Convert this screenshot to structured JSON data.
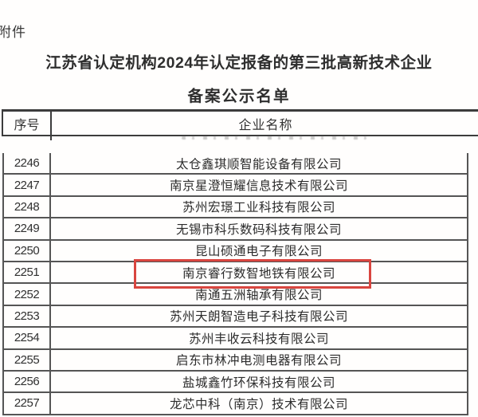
{
  "page": {
    "attachment_label": "附件",
    "title_line1": "江苏省认定机构2024年认定报备的第三批高新技术企业",
    "title_line2": "备案公示名单"
  },
  "table": {
    "header": {
      "no": "序号",
      "name": "企业名称"
    },
    "rows": [
      {
        "no": "2246",
        "name": "太仓鑫琪顺智能设备有限公司",
        "highlighted": false
      },
      {
        "no": "2247",
        "name": "南京星澄恒耀信息技术有限公司",
        "highlighted": false
      },
      {
        "no": "2248",
        "name": "苏州宏璟工业科技有限公司",
        "highlighted": false
      },
      {
        "no": "2249",
        "name": "无锡市科乐数码科技有限公司",
        "highlighted": false
      },
      {
        "no": "2250",
        "name": "昆山硕通电子有限公司",
        "highlighted": false
      },
      {
        "no": "2251",
        "name": "南京睿行数智地铁有限公司",
        "highlighted": true
      },
      {
        "no": "2252",
        "name": "南通五洲轴承有限公司",
        "highlighted": false
      },
      {
        "no": "2253",
        "name": "苏州天朗智造电子科技有限公司",
        "highlighted": false
      },
      {
        "no": "2254",
        "name": "苏州丰收云科技有限公司",
        "highlighted": false
      },
      {
        "no": "2255",
        "name": "启东市林冲电测电器有限公司",
        "highlighted": false
      },
      {
        "no": "2256",
        "name": "盐城鑫竹环保科技有限公司",
        "highlighted": false
      },
      {
        "no": "2257",
        "name": "龙芯中科（南京）技术有限公司",
        "highlighted": false
      }
    ]
  },
  "colors": {
    "highlight_box": "#d9453f",
    "header_line": "#3c3c3c",
    "table_line": "#555555",
    "text": "#2d2d2d"
  }
}
